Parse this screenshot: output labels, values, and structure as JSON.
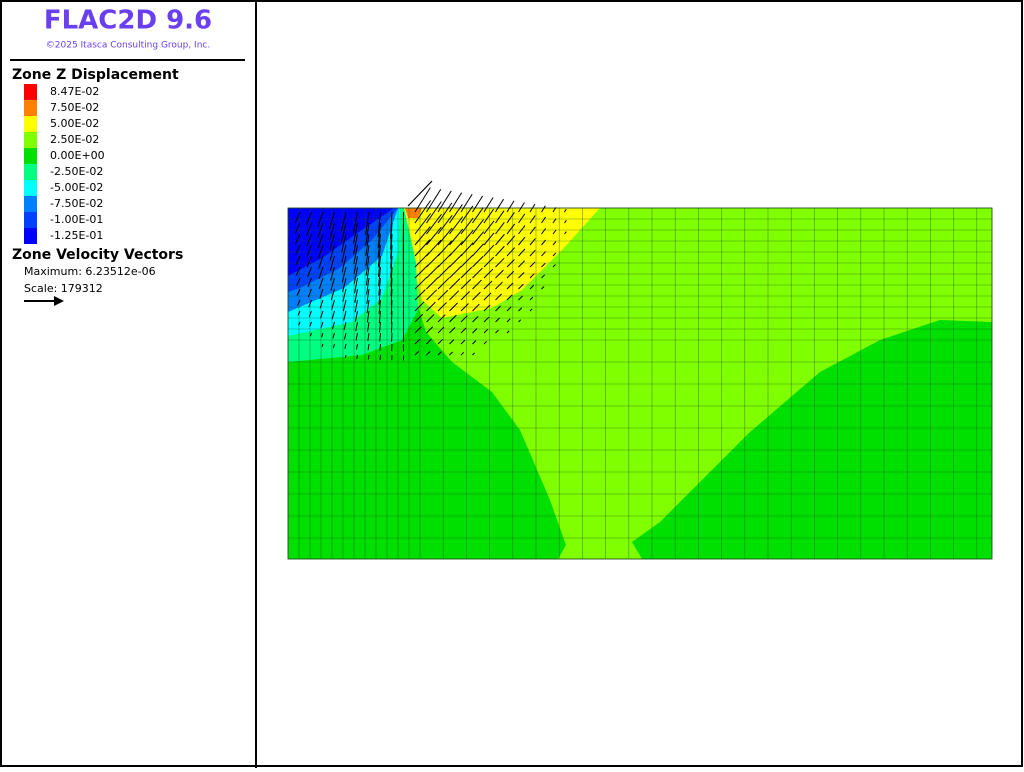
{
  "header": {
    "title": "FLAC2D 9.6",
    "copyright": "©2025 Itasca Consulting Group, Inc."
  },
  "legend": {
    "title": "Zone Z Displacement",
    "items": [
      {
        "label": "8.47E-02",
        "color": "#ff0000"
      },
      {
        "label": "7.50E-02",
        "color": "#ff8000"
      },
      {
        "label": "5.00E-02",
        "color": "#ffff00"
      },
      {
        "label": "2.50E-02",
        "color": "#80ff00"
      },
      {
        "label": "0.00E+00",
        "color": "#00e000"
      },
      {
        "label": "-2.50E-02",
        "color": "#00ff80"
      },
      {
        "label": "-5.00E-02",
        "color": "#00ffff"
      },
      {
        "label": "-7.50E-02",
        "color": "#0080ff"
      },
      {
        "label": "-1.00E-01",
        "color": "#0040ff"
      },
      {
        "label": "-1.25E-01",
        "color": "#0000ff"
      }
    ]
  },
  "vectors": {
    "title": "Zone Velocity Vectors",
    "maximum": "Maximum: 6.23512e-06",
    "scale": "Scale: 179312"
  }
}
